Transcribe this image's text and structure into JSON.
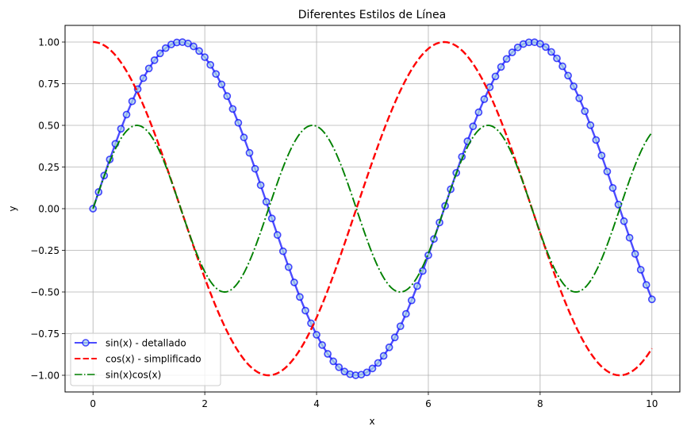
{
  "chart_data": {
    "type": "line",
    "title": "Diferentes Estilos de Línea",
    "xlabel": "x",
    "ylabel": "y",
    "xlim": [
      -0.5,
      10.5
    ],
    "ylim": [
      -1.1,
      1.1
    ],
    "grid": true,
    "legend_position": "lower left",
    "x_ticks": [
      0,
      2,
      4,
      6,
      8,
      10
    ],
    "x_tick_labels": [
      "0",
      "2",
      "4",
      "6",
      "8",
      "10"
    ],
    "y_ticks": [
      1.0,
      0.75,
      0.5,
      0.25,
      0.0,
      -0.25,
      -0.5,
      -0.75,
      -1.0
    ],
    "y_tick_labels": [
      "1.00",
      "0.75",
      "0.50",
      "0.25",
      "0.00",
      "−0.25",
      "−0.50",
      "−0.75",
      "−1.00"
    ],
    "x_range": {
      "start": 0,
      "end": 10,
      "points": 101
    },
    "series": [
      {
        "name": "sin(x) - detallado",
        "function": "sin(x)",
        "color": "#0000ff",
        "alpha": 0.7,
        "linestyle": "solid",
        "linewidth": 2,
        "marker": "o",
        "marker_facecolor": "lightblue"
      },
      {
        "name": "cos(x) - simplificado",
        "function": "cos(x)",
        "color": "#ff0000",
        "linestyle": "dashed",
        "linewidth": 2
      },
      {
        "name": "sin(x)cos(x)",
        "function": "sin(x)*cos(x)",
        "color": "#008000",
        "linestyle": "dashdot",
        "linewidth": 1.5
      }
    ],
    "sample_values": {
      "x": [
        0,
        1,
        2,
        3,
        4,
        5,
        6,
        7,
        8,
        9,
        10
      ],
      "sin(x)": [
        0.0,
        0.841,
        0.909,
        0.141,
        -0.757,
        -0.959,
        -0.279,
        0.657,
        0.989,
        0.412,
        -0.544
      ],
      "cos(x)": [
        1.0,
        0.54,
        -0.416,
        -0.99,
        -0.654,
        0.284,
        0.96,
        0.754,
        -0.146,
        -0.911,
        -0.839
      ],
      "sin(x)cos(x)": [
        0.0,
        0.455,
        -0.378,
        -0.14,
        0.495,
        -0.272,
        -0.268,
        0.495,
        -0.144,
        -0.375,
        0.456
      ]
    }
  }
}
